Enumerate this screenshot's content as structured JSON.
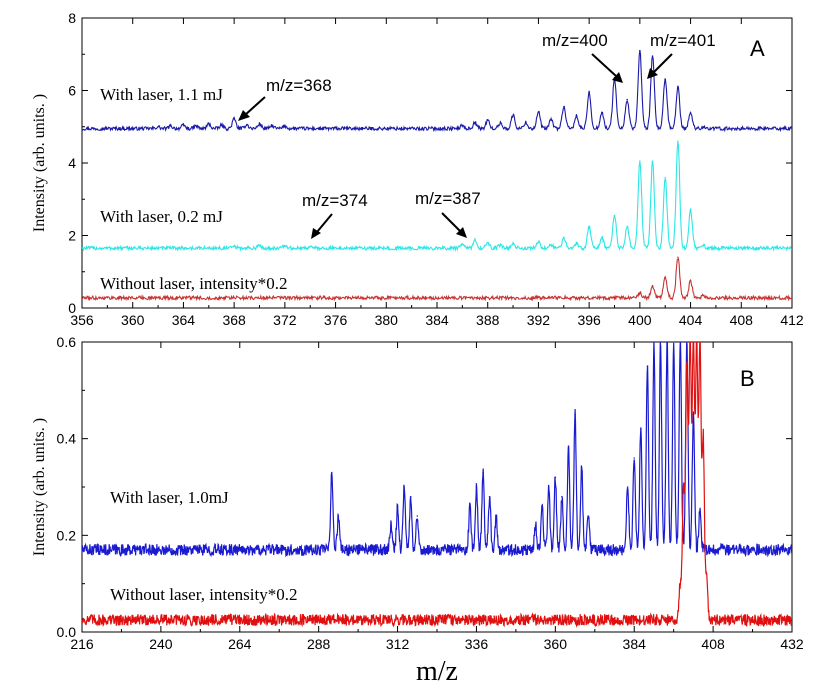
{
  "chart_data": [
    {
      "type": "line",
      "panel_label": "A",
      "ylabel": "Intensity (arb. units. )",
      "xlim": [
        356,
        412
      ],
      "ylim": [
        0,
        8
      ],
      "xticks": [
        356,
        360,
        364,
        368,
        372,
        376,
        380,
        384,
        388,
        392,
        396,
        400,
        404,
        408,
        412
      ],
      "yticks": [
        0,
        2,
        4,
        6,
        8
      ],
      "grid": false,
      "series": [
        {
          "name": "With laser, 1.1 mJ",
          "color": "#1a1aa6",
          "baseline": 4.95,
          "peaks": [
            [
              362,
              5.0
            ],
            [
              363,
              5.02
            ],
            [
              364,
              5.04
            ],
            [
              365,
              5.02
            ],
            [
              366,
              5.08
            ],
            [
              367,
              5.04
            ],
            [
              368,
              5.22
            ],
            [
              369,
              5.06
            ],
            [
              370,
              5.08
            ],
            [
              371,
              5.03
            ],
            [
              372,
              5.02
            ],
            [
              386,
              5.04
            ],
            [
              387,
              5.12
            ],
            [
              388,
              5.18
            ],
            [
              389,
              5.1
            ],
            [
              390,
              5.32
            ],
            [
              391,
              5.12
            ],
            [
              392,
              5.4
            ],
            [
              393,
              5.2
            ],
            [
              394,
              5.55
            ],
            [
              395,
              5.3
            ],
            [
              396,
              5.95
            ],
            [
              397,
              5.4
            ],
            [
              398,
              6.35
            ],
            [
              399,
              5.75
            ],
            [
              400,
              7.1
            ],
            [
              401,
              6.95
            ],
            [
              402,
              6.3
            ],
            [
              403,
              6.1
            ],
            [
              404,
              5.4
            ],
            [
              405,
              5.0
            ]
          ]
        },
        {
          "name": "With laser, 0.2 mJ",
          "color": "#2ee6e6",
          "baseline": 1.65,
          "peaks": [
            [
              368,
              1.7
            ],
            [
              370,
              1.72
            ],
            [
              372,
              1.72
            ],
            [
              374,
              1.7
            ],
            [
              386,
              1.75
            ],
            [
              387,
              1.88
            ],
            [
              388,
              1.8
            ],
            [
              389,
              1.74
            ],
            [
              390,
              1.76
            ],
            [
              392,
              1.82
            ],
            [
              393,
              1.74
            ],
            [
              394,
              1.95
            ],
            [
              395,
              1.8
            ],
            [
              396,
              2.25
            ],
            [
              397,
              1.95
            ],
            [
              398,
              2.55
            ],
            [
              399,
              2.25
            ],
            [
              400,
              4.05
            ],
            [
              401,
              4.05
            ],
            [
              402,
              3.6
            ],
            [
              403,
              4.6
            ],
            [
              404,
              2.7
            ],
            [
              405,
              1.72
            ]
          ]
        },
        {
          "name": "Without laser, intensity*0.2",
          "color": "#c83232",
          "baseline": 0.28,
          "peaks": [
            [
              400,
              0.42
            ],
            [
              401,
              0.6
            ],
            [
              402,
              0.85
            ],
            [
              403,
              1.4
            ],
            [
              404,
              0.75
            ],
            [
              405,
              0.35
            ]
          ]
        }
      ],
      "annotations": [
        {
          "text": "m/z=368",
          "x": 368,
          "y": 5.2
        },
        {
          "text": "m/z=374",
          "x": 374,
          "y": 1.72
        },
        {
          "text": "m/z=387",
          "x": 387,
          "y": 1.88
        },
        {
          "text": "m/z=400",
          "x": 400,
          "y": 7.05
        },
        {
          "text": "m/z=401",
          "x": 401,
          "y": 6.95
        }
      ]
    },
    {
      "type": "line",
      "panel_label": "B",
      "ylabel": "Intensity (arb. units. )",
      "xlabel": "m/z",
      "xlim": [
        216,
        432
      ],
      "ylim": [
        0,
        0.6
      ],
      "xticks": [
        216,
        240,
        264,
        288,
        312,
        336,
        360,
        384,
        408,
        432
      ],
      "yticks": [
        0.0,
        0.2,
        0.4,
        0.6
      ],
      "ytick_labels": [
        "0.0",
        "0.2",
        "0.4",
        "0.6"
      ],
      "grid": false,
      "series": [
        {
          "name": "With laser, 1.0mJ",
          "color": "#1a1ad0",
          "baseline": 0.17,
          "peaks": [
            [
              292,
              0.33
            ],
            [
              294,
              0.24
            ],
            [
              310,
              0.22
            ],
            [
              312,
              0.26
            ],
            [
              314,
              0.3
            ],
            [
              316,
              0.28
            ],
            [
              318,
              0.24
            ],
            [
              334,
              0.26
            ],
            [
              336,
              0.3
            ],
            [
              338,
              0.33
            ],
            [
              340,
              0.28
            ],
            [
              342,
              0.24
            ],
            [
              354,
              0.22
            ],
            [
              356,
              0.26
            ],
            [
              358,
              0.3
            ],
            [
              360,
              0.32
            ],
            [
              362,
              0.28
            ],
            [
              364,
              0.38
            ],
            [
              366,
              0.45
            ],
            [
              368,
              0.34
            ],
            [
              370,
              0.24
            ],
            [
              382,
              0.3
            ],
            [
              384,
              0.36
            ],
            [
              386,
              0.42
            ],
            [
              388,
              0.55
            ],
            [
              390,
              0.6
            ],
            [
              392,
              0.6
            ],
            [
              394,
              0.6
            ],
            [
              396,
              0.6
            ],
            [
              398,
              0.6
            ],
            [
              400,
              0.6
            ],
            [
              402,
              0.45
            ],
            [
              404,
              0.25
            ]
          ]
        },
        {
          "name": "Without laser, intensity*0.2",
          "color": "#e01010",
          "baseline": 0.025,
          "peaks": [
            [
              398,
              0.1
            ],
            [
              399,
              0.3
            ],
            [
              400,
              0.55
            ],
            [
              401,
              0.6
            ],
            [
              402,
              0.6
            ],
            [
              403,
              0.6
            ],
            [
              404,
              0.6
            ],
            [
              405,
              0.4
            ],
            [
              406,
              0.12
            ]
          ]
        }
      ],
      "annotations": []
    }
  ]
}
